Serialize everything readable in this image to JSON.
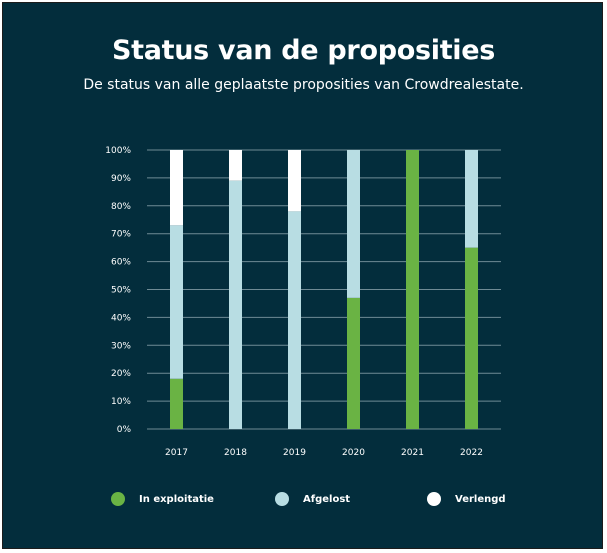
{
  "header": {
    "title": "Status van de proposities",
    "subtitle": "De status van alle geplaatste proposities van Crowdrealestate."
  },
  "colors": {
    "background": "#032d3c",
    "grid": "#6f8b95",
    "exploitatie": "#6ab344",
    "afgelost": "#b8dde3",
    "verlengd": "#ffffff"
  },
  "chart_data": {
    "type": "bar",
    "stacked": true,
    "title": "Status van de proposities",
    "subtitle": "De status van alle geplaatste proposities van Crowdrealestate.",
    "categories": [
      "2017",
      "2018",
      "2019",
      "2020",
      "2021",
      "2022"
    ],
    "series": [
      {
        "name": "In exploitatie",
        "values": [
          18,
          0,
          0,
          47,
          100,
          65
        ],
        "color": "#6ab344"
      },
      {
        "name": "Afgelost",
        "values": [
          55,
          89,
          78,
          53,
          0,
          35
        ],
        "color": "#b8dde3"
      },
      {
        "name": "Verlengd",
        "values": [
          27,
          11,
          22,
          0,
          0,
          0
        ],
        "color": "#ffffff"
      }
    ],
    "yticks": [
      "0%",
      "10%",
      "20%",
      "30%",
      "40%",
      "50%",
      "60%",
      "70%",
      "80%",
      "90%",
      "100%"
    ],
    "ylim": [
      0,
      100
    ],
    "grid": true,
    "legend": "bottom"
  }
}
